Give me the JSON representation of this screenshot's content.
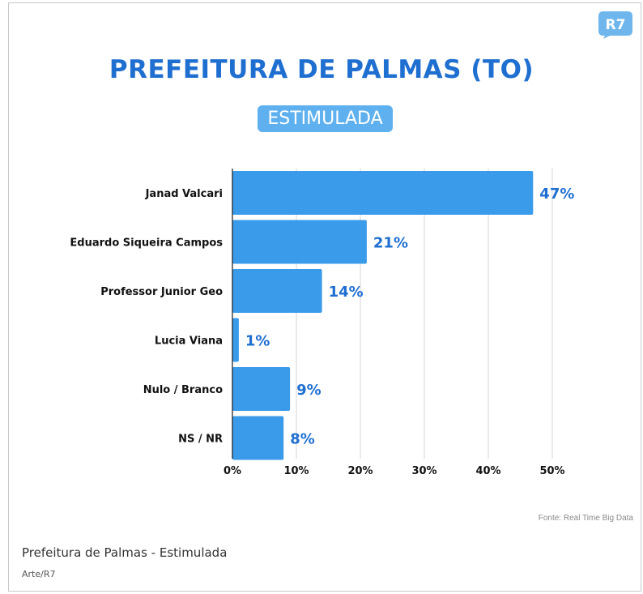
{
  "logo": {
    "text": "R7"
  },
  "header": {
    "title": "PREFEITURA DE PALMAS (TO)",
    "subtitle": "ESTIMULADA"
  },
  "footer": {
    "source": "Fonte: Real Time Big Data",
    "caption": "Prefeitura de Palmas - Estimulada",
    "credit": "Arte/R7"
  },
  "colors": {
    "bar": "#3a9bea",
    "value_label": "#1f6fd1",
    "title": "#1f6fd1",
    "badge": "#5eb0ee",
    "grid": "#d4d4d4"
  },
  "chart_data": {
    "type": "bar",
    "orientation": "horizontal",
    "categories": [
      "Janad Valcari",
      "Eduardo Siqueira Campos",
      "Professor Junior Geo",
      "Lucia Viana",
      "Nulo / Branco",
      "NS / NR"
    ],
    "values": [
      47,
      21,
      14,
      1,
      9,
      8
    ],
    "value_labels": [
      "47%",
      "21%",
      "14%",
      "1%",
      "9%",
      "8%"
    ],
    "title": "PREFEITURA DE PALMAS (TO)",
    "subtitle": "ESTIMULADA",
    "xlim": [
      0,
      50
    ],
    "xticks": [
      0,
      10,
      20,
      30,
      40,
      50
    ],
    "xtick_labels": [
      "0%",
      "10%",
      "20%",
      "30%",
      "40%",
      "50%"
    ],
    "grid": true
  }
}
